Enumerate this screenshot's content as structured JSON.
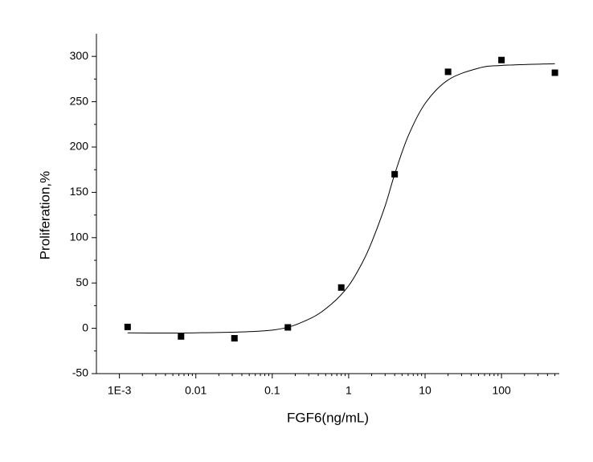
{
  "chart_data": {
    "type": "scatter",
    "x_label": "FGF6(ng/mL)",
    "y_label": "Proliferation,%",
    "x": [
      0.00128,
      0.0064,
      0.032,
      0.16,
      0.8,
      4,
      20,
      100,
      500
    ],
    "values": [
      1.5,
      -9,
      -11,
      1,
      45,
      170,
      283,
      296,
      282
    ],
    "color": "#000000",
    "curve": {
      "x": [
        0.00128,
        0.01,
        0.1,
        0.3,
        0.6,
        1,
        1.5,
        2,
        3,
        4,
        6,
        10,
        20,
        50,
        100,
        500
      ],
      "values": [
        -5,
        -5,
        -2,
        10,
        27,
        47,
        72,
        95,
        135,
        170,
        212,
        248,
        274,
        287,
        290,
        292
      ]
    },
    "xscale": "log",
    "xlim": [
      0.0005,
      570
    ],
    "ylim": [
      -50,
      325
    ],
    "xticks": [
      {
        "value": 0.001,
        "label": "1E-3"
      },
      0.01,
      0.1,
      1,
      10,
      100
    ],
    "yticks": [
      -50,
      0,
      50,
      100,
      150,
      200,
      250,
      300
    ],
    "xminorticks": [
      0.002,
      0.003,
      0.004,
      0.005,
      0.006,
      0.007,
      0.008,
      0.009,
      0.02,
      0.03,
      0.04,
      0.05,
      0.06,
      0.07,
      0.08,
      0.09,
      0.2,
      0.3,
      0.4,
      0.5,
      0.6,
      0.7,
      0.8,
      0.9,
      2,
      3,
      4,
      5,
      6,
      7,
      8,
      9,
      20,
      30,
      40,
      50,
      60,
      70,
      80,
      90,
      200,
      300,
      400,
      500
    ],
    "yminorticks": [
      -25,
      25,
      75,
      125,
      175,
      225,
      275
    ],
    "grid": false
  }
}
